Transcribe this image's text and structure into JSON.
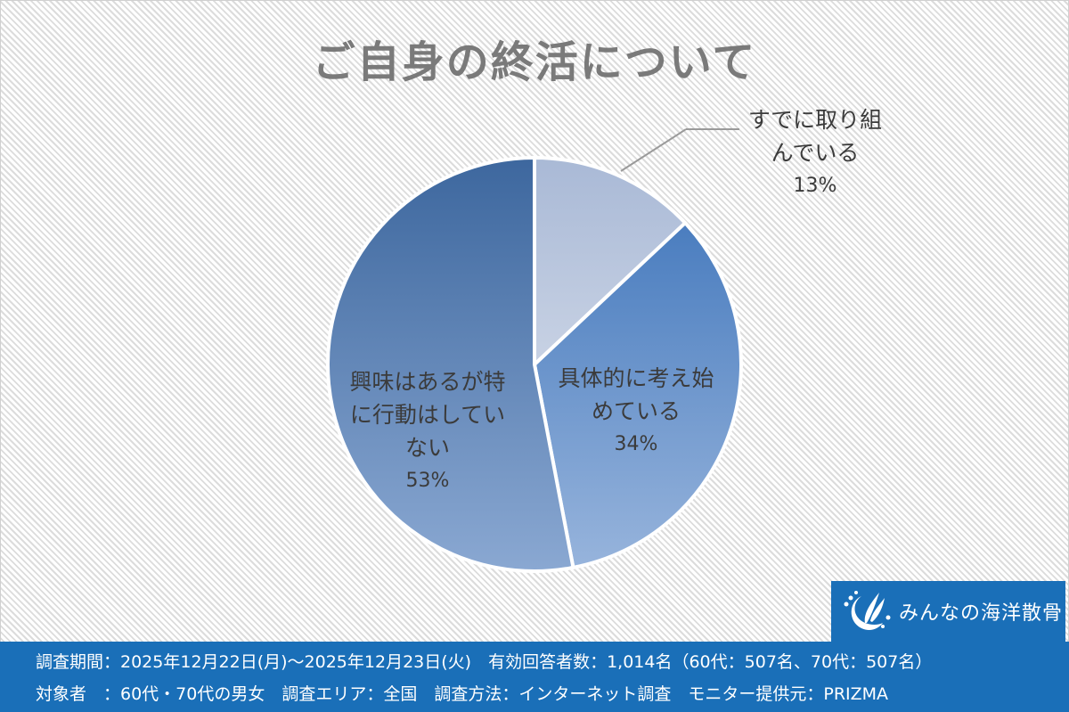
{
  "title": "ご自身の終活について",
  "chart_data": {
    "type": "pie",
    "title": "ご自身の終活について",
    "categories": [
      "すでに取り組んでいる",
      "具体的に考え始めている",
      "興味はあるが特に行動はしていない"
    ],
    "values": [
      13,
      34,
      53
    ],
    "unit": "%",
    "start_angle_deg": 0,
    "direction": "clockwise",
    "colors": [
      {
        "top": "#a9b9d6",
        "bottom": "#c8d2e4"
      },
      {
        "top": "#4a7dbf",
        "bottom": "#97b4dc"
      },
      {
        "top": "#3d679e",
        "bottom": "#8aa8d2"
      }
    ],
    "labels": [
      {
        "line1": "すでに取り組",
        "line2": "んでいる",
        "pct": "13%"
      },
      {
        "line1": "具体的に考え始",
        "line2": "めている",
        "pct": "34%"
      },
      {
        "line1": "興味はあるが特",
        "line2": "に行動はしてい",
        "line3": "ない",
        "pct": "53%"
      }
    ],
    "legend": "none",
    "grid": false
  },
  "logo": {
    "icon": "wave-crescent-logo-icon",
    "text": "みんなの海洋散骨"
  },
  "footer": {
    "line1": "調査期間：2025年12月22日(月)～2025年12月23日(火)　有効回答者数：1,014名（60代：507名、70代：507名）",
    "line2": "対象者　：60代・70代の男女　調査エリア：全国　調査方法：インターネット調査　モニター提供元：PRIZMA"
  },
  "colors": {
    "footer_bg": "#1a6fb8",
    "title_text": "#7a7a7a",
    "label_text": "#3b3b3b"
  }
}
